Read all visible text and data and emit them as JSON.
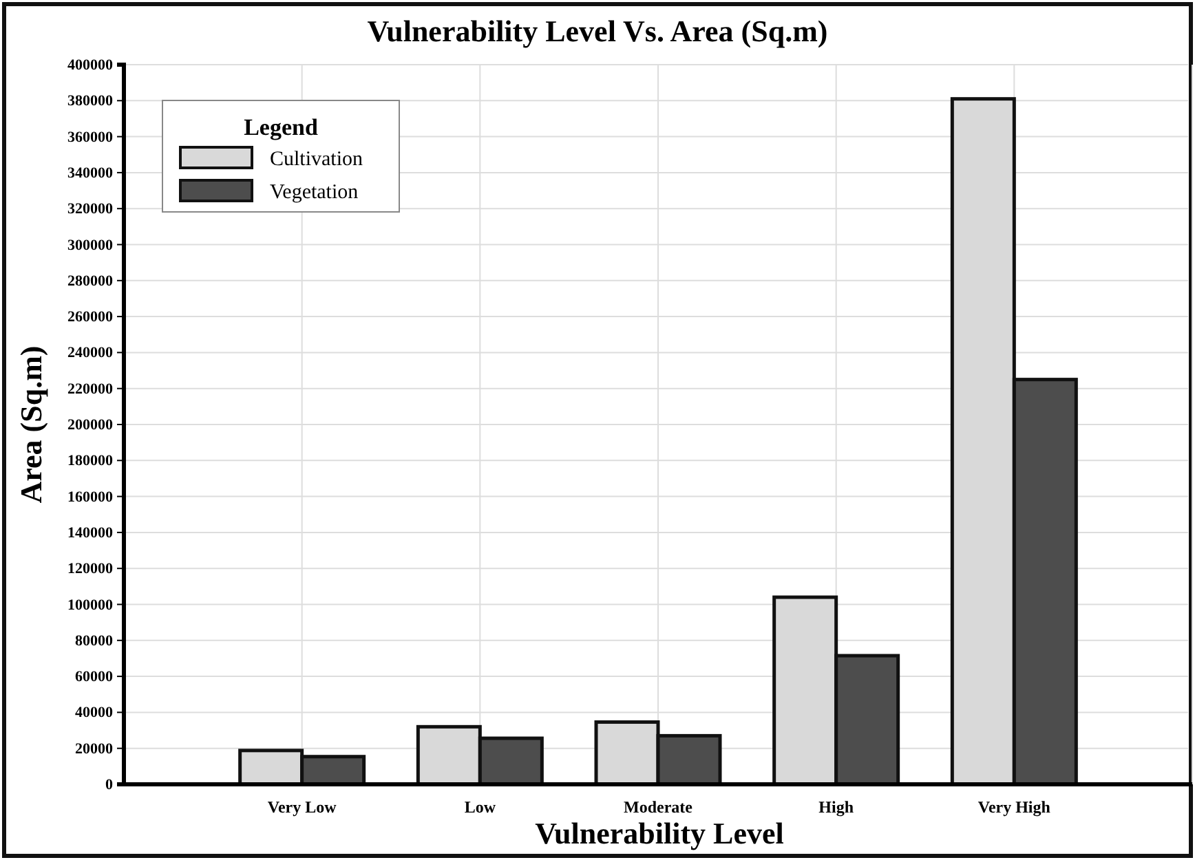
{
  "chart_data": {
    "type": "bar",
    "title": "Vulnerability Level Vs. Area (Sq.m)",
    "xlabel": "Vulnerability Level",
    "ylabel": "Area (Sq.m)",
    "legend_title": "Legend",
    "categories": [
      "Very Low",
      "Low",
      "Moderate",
      "High",
      "Very High"
    ],
    "series": [
      {
        "name": "Cultivation",
        "color": "#d9d9d9",
        "values": [
          18800,
          32000,
          34600,
          104000,
          381000
        ]
      },
      {
        "name": "Vegetation",
        "color": "#4d4d4d",
        "values": [
          15400,
          25600,
          27000,
          71500,
          225000
        ]
      }
    ],
    "ylim": [
      0,
      400000
    ],
    "yticks": [
      0,
      20000,
      40000,
      60000,
      80000,
      100000,
      120000,
      140000,
      160000,
      180000,
      200000,
      220000,
      240000,
      260000,
      280000,
      300000,
      320000,
      340000,
      360000,
      380000,
      400000
    ],
    "grid": true,
    "legend": "top left"
  }
}
